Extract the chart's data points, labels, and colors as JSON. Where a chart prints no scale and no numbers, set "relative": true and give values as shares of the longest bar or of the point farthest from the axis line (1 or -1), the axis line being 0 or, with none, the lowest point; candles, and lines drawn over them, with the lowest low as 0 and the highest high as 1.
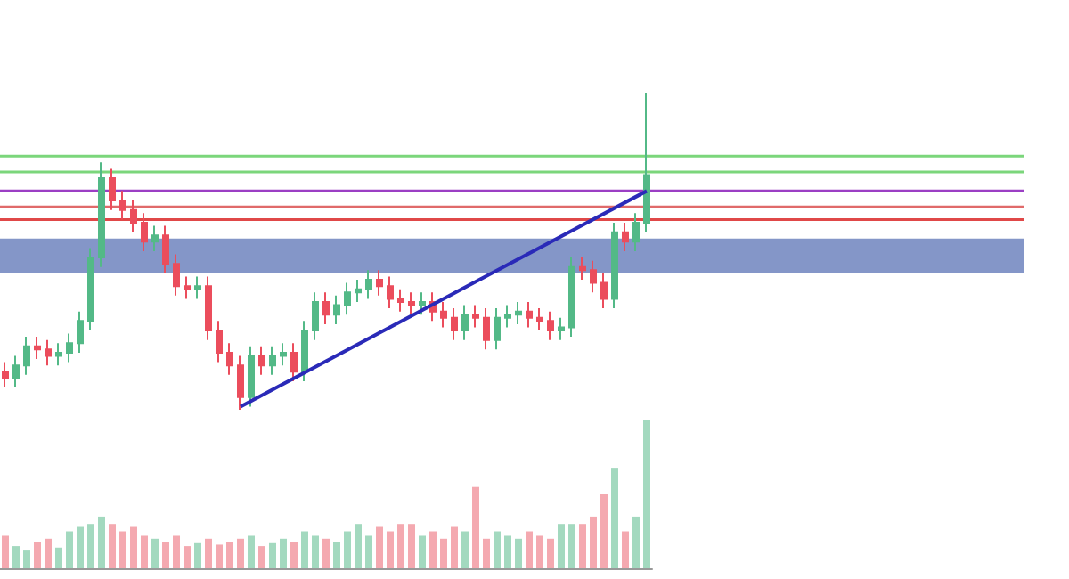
{
  "chart_data": [
    {
      "type": "candlestick",
      "relative": true,
      "grid": false,
      "tick_labels": false,
      "categories": [
        null,
        null,
        null,
        null,
        null,
        null,
        null,
        null,
        null,
        null,
        null,
        null,
        null,
        null,
        null,
        null,
        null,
        null,
        null,
        null,
        null,
        null,
        null,
        null,
        null,
        null,
        null,
        null,
        null,
        null,
        null,
        null,
        null,
        null,
        null,
        null,
        null,
        null,
        null,
        null,
        null,
        null,
        null,
        null,
        null,
        null,
        null,
        null,
        null,
        null,
        null,
        null,
        null,
        null,
        null,
        null,
        null,
        null,
        null,
        null,
        null
      ],
      "ohlc": [
        [
          0.12,
          0.15,
          0.07,
          0.1
        ],
        [
          0.1,
          0.17,
          0.07,
          0.14
        ],
        [
          0.14,
          0.23,
          0.11,
          0.2
        ],
        [
          0.2,
          0.23,
          0.16,
          0.19
        ],
        [
          0.19,
          0.22,
          0.14,
          0.17
        ],
        [
          0.17,
          0.21,
          0.14,
          0.18
        ],
        [
          0.18,
          0.24,
          0.15,
          0.21
        ],
        [
          0.21,
          0.31,
          0.18,
          0.28
        ],
        [
          0.28,
          0.51,
          0.25,
          0.48
        ],
        [
          0.48,
          0.78,
          0.45,
          0.73
        ],
        [
          0.73,
          0.76,
          0.63,
          0.66
        ],
        [
          0.66,
          0.69,
          0.6,
          0.63
        ],
        [
          0.63,
          0.66,
          0.56,
          0.59
        ],
        [
          0.59,
          0.62,
          0.5,
          0.53
        ],
        [
          0.53,
          0.58,
          0.5,
          0.55
        ],
        [
          0.55,
          0.58,
          0.43,
          0.46
        ],
        [
          0.46,
          0.49,
          0.36,
          0.39
        ],
        [
          0.39,
          0.42,
          0.35,
          0.38
        ],
        [
          0.38,
          0.42,
          0.35,
          0.39
        ],
        [
          0.39,
          0.42,
          0.22,
          0.25
        ],
        [
          0.25,
          0.28,
          0.15,
          0.18
        ],
        [
          0.18,
          0.21,
          0.11,
          0.14
        ],
        [
          0.14,
          0.17,
          0.0,
          0.04
        ],
        [
          0.04,
          0.2,
          0.01,
          0.17
        ],
        [
          0.17,
          0.2,
          0.11,
          0.14
        ],
        [
          0.14,
          0.2,
          0.11,
          0.17
        ],
        [
          0.17,
          0.21,
          0.14,
          0.18
        ],
        [
          0.18,
          0.21,
          0.09,
          0.12
        ],
        [
          0.12,
          0.28,
          0.09,
          0.25
        ],
        [
          0.25,
          0.37,
          0.22,
          0.34
        ],
        [
          0.34,
          0.37,
          0.27,
          0.3
        ],
        [
          0.3,
          0.36,
          0.27,
          0.33
        ],
        [
          0.33,
          0.4,
          0.3,
          0.37
        ],
        [
          0.37,
          0.41,
          0.34,
          0.38
        ],
        [
          0.38,
          0.44,
          0.35,
          0.41
        ],
        [
          0.41,
          0.44,
          0.36,
          0.39
        ],
        [
          0.39,
          0.42,
          0.32,
          0.35
        ],
        [
          0.35,
          0.38,
          0.31,
          0.34
        ],
        [
          0.34,
          0.37,
          0.3,
          0.33
        ],
        [
          0.33,
          0.37,
          0.3,
          0.34
        ],
        [
          0.34,
          0.37,
          0.28,
          0.31
        ],
        [
          0.31,
          0.34,
          0.26,
          0.29
        ],
        [
          0.29,
          0.32,
          0.22,
          0.25
        ],
        [
          0.25,
          0.33,
          0.22,
          0.3
        ],
        [
          0.3,
          0.33,
          0.26,
          0.29
        ],
        [
          0.29,
          0.32,
          0.19,
          0.22
        ],
        [
          0.22,
          0.32,
          0.19,
          0.29
        ],
        [
          0.29,
          0.33,
          0.26,
          0.3
        ],
        [
          0.3,
          0.34,
          0.27,
          0.31
        ],
        [
          0.31,
          0.34,
          0.26,
          0.29
        ],
        [
          0.29,
          0.32,
          0.25,
          0.28
        ],
        [
          0.28,
          0.31,
          0.22,
          0.25
        ],
        [
          0.25,
          0.29,
          0.22,
          0.26
        ],
        [
          0.26,
          0.48,
          0.23,
          0.45
        ],
        [
          0.45,
          0.48,
          0.41,
          0.44
        ],
        [
          0.44,
          0.47,
          0.37,
          0.4
        ],
        [
          0.4,
          0.43,
          0.32,
          0.35
        ],
        [
          0.35,
          0.59,
          0.32,
          0.56
        ],
        [
          0.56,
          0.59,
          0.5,
          0.53
        ],
        [
          0.53,
          0.62,
          0.5,
          0.59
        ],
        [
          0.59,
          1,
          0.56,
          0.74
        ]
      ],
      "colors": [
        "#eb4d5c",
        "#53b987",
        "#53b987",
        "#eb4d5c",
        "#eb4d5c",
        "#53b987",
        "#53b987",
        "#53b987",
        "#53b987",
        "#53b987",
        "#eb4d5c",
        "#eb4d5c",
        "#eb4d5c",
        "#eb4d5c",
        "#53b987",
        "#eb4d5c",
        "#eb4d5c",
        "#eb4d5c",
        "#53b987",
        "#eb4d5c",
        "#eb4d5c",
        "#eb4d5c",
        "#eb4d5c",
        "#53b987",
        "#eb4d5c",
        "#53b987",
        "#53b987",
        "#eb4d5c",
        "#53b987",
        "#53b987",
        "#eb4d5c",
        "#53b987",
        "#53b987",
        "#53b987",
        "#53b987",
        "#eb4d5c",
        "#eb4d5c",
        "#eb4d5c",
        "#eb4d5c",
        "#53b987",
        "#eb4d5c",
        "#eb4d5c",
        "#eb4d5c",
        "#53b987",
        "#eb4d5c",
        "#eb4d5c",
        "#53b987",
        "#53b987",
        "#53b987",
        "#eb4d5c",
        "#eb4d5c",
        "#eb4d5c",
        "#53b987",
        "#53b987",
        "#eb4d5c",
        "#eb4d5c",
        "#eb4d5c",
        "#53b987",
        "#eb4d5c",
        "#53b987",
        "#53b987"
      ],
      "series": [
        {
          "type": "line",
          "color": "#2a2ab8",
          "values": [
            null,
            null,
            null,
            null,
            null,
            null,
            null,
            null,
            null,
            null,
            null,
            null,
            null,
            null,
            null,
            null,
            null,
            null,
            null,
            null,
            null,
            null,
            0.01,
            null,
            null,
            null,
            null,
            null,
            null,
            null,
            null,
            null,
            null,
            null,
            null,
            null,
            null,
            null,
            null,
            null,
            null,
            null,
            null,
            null,
            null,
            null,
            null,
            null,
            null,
            null,
            null,
            null,
            null,
            null,
            null,
            null,
            null,
            null,
            null,
            null,
            0.69
          ]
        }
      ],
      "ref_lines": [
        {
          "axis": "y",
          "value": 0.8,
          "color": "#7bd67b"
        },
        {
          "axis": "y",
          "value": 0.75,
          "color": "#7bd67b"
        },
        {
          "axis": "y",
          "value": 0.69,
          "color": "#9b3fc4"
        },
        {
          "axis": "y",
          "value": 0.64,
          "color": "#e06a6a"
        },
        {
          "axis": "y",
          "value": 0.6,
          "color": "#e04848"
        }
      ],
      "bands": [
        {
          "axis": "y",
          "from": 0.43,
          "to": 0.54,
          "color": "#8496c8"
        }
      ]
    },
    {
      "type": "bar",
      "relative": true,
      "grid": false,
      "tick_labels": false,
      "categories": [
        null,
        null,
        null,
        null,
        null,
        null,
        null,
        null,
        null,
        null,
        null,
        null,
        null,
        null,
        null,
        null,
        null,
        null,
        null,
        null,
        null,
        null,
        null,
        null,
        null,
        null,
        null,
        null,
        null,
        null,
        null,
        null,
        null,
        null,
        null,
        null,
        null,
        null,
        null,
        null,
        null,
        null,
        null,
        null,
        null,
        null,
        null,
        null,
        null,
        null,
        null,
        null,
        null,
        null,
        null,
        null,
        null,
        null,
        null,
        null,
        null
      ],
      "values": [
        0.22,
        0.15,
        0.12,
        0.18,
        0.2,
        0.14,
        0.25,
        0.28,
        0.3,
        0.35,
        0.3,
        0.25,
        0.28,
        0.22,
        0.2,
        0.18,
        0.22,
        0.15,
        0.17,
        0.2,
        0.16,
        0.18,
        0.2,
        0.22,
        0.15,
        0.17,
        0.2,
        0.18,
        0.25,
        0.22,
        0.2,
        0.18,
        0.25,
        0.3,
        0.22,
        0.28,
        0.25,
        0.3,
        0.3,
        0.22,
        0.25,
        0.2,
        0.28,
        0.25,
        0.55,
        0.2,
        0.25,
        0.22,
        0.2,
        0.25,
        0.22,
        0.2,
        0.3,
        0.3,
        0.3,
        0.35,
        0.5,
        0.68,
        0.25,
        0.35,
        1
      ],
      "colors": [
        "#f4a9b0",
        "#a3d9bf",
        "#a3d9bf",
        "#f4a9b0",
        "#f4a9b0",
        "#a3d9bf",
        "#a3d9bf",
        "#a3d9bf",
        "#a3d9bf",
        "#a3d9bf",
        "#f4a9b0",
        "#f4a9b0",
        "#f4a9b0",
        "#f4a9b0",
        "#a3d9bf",
        "#f4a9b0",
        "#f4a9b0",
        "#f4a9b0",
        "#a3d9bf",
        "#f4a9b0",
        "#f4a9b0",
        "#f4a9b0",
        "#f4a9b0",
        "#a3d9bf",
        "#f4a9b0",
        "#a3d9bf",
        "#a3d9bf",
        "#f4a9b0",
        "#a3d9bf",
        "#a3d9bf",
        "#f4a9b0",
        "#a3d9bf",
        "#a3d9bf",
        "#a3d9bf",
        "#a3d9bf",
        "#f4a9b0",
        "#f4a9b0",
        "#f4a9b0",
        "#f4a9b0",
        "#a3d9bf",
        "#f4a9b0",
        "#f4a9b0",
        "#f4a9b0",
        "#a3d9bf",
        "#f4a9b0",
        "#f4a9b0",
        "#a3d9bf",
        "#a3d9bf",
        "#a3d9bf",
        "#f4a9b0",
        "#f4a9b0",
        "#f4a9b0",
        "#a3d9bf",
        "#a3d9bf",
        "#f4a9b0",
        "#f4a9b0",
        "#f4a9b0",
        "#a3d9bf",
        "#f4a9b0",
        "#a3d9bf",
        "#a3d9bf"
      ]
    }
  ]
}
